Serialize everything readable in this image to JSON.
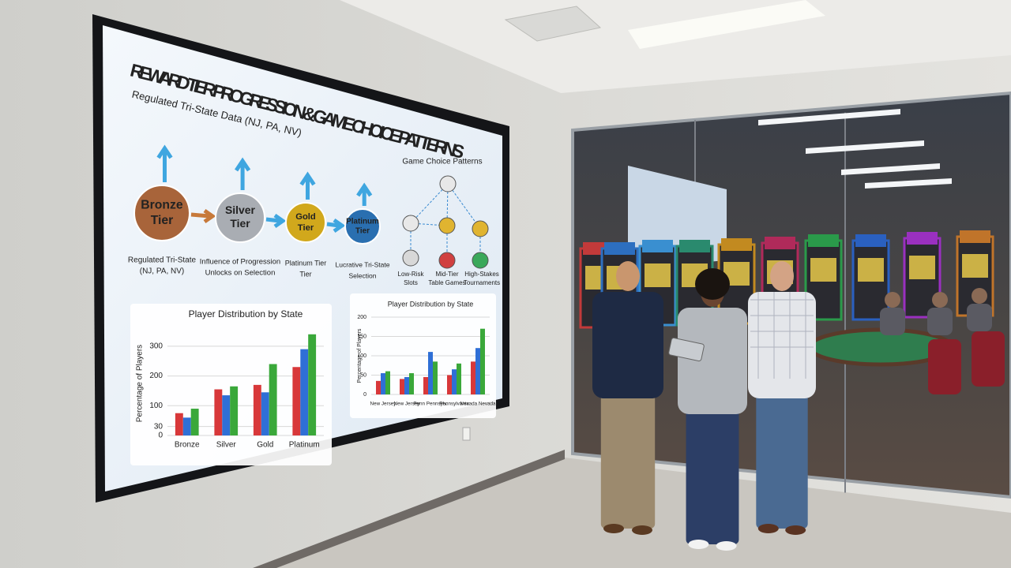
{
  "screen": {
    "title": "REWARD TIER PROGRESSION & GAME CHOICE PATTERNS",
    "subtitle": "Regulated Tri-State Data (NJ, PA, NV)",
    "tiers": [
      {
        "label": [
          "Bronze",
          "Tier"
        ],
        "caption": [
          "Regulated Tri-State",
          "(NJ, PA, NV)"
        ],
        "color": "#a8643a"
      },
      {
        "label": [
          "Silver",
          "Tier"
        ],
        "caption": [
          "Influence of Progression",
          "Unlocks on Selection"
        ],
        "color": "#a9adb3"
      },
      {
        "label": [
          "Gold",
          "Tier"
        ],
        "caption": [
          "Platinum Tier",
          "Tier"
        ],
        "color": "#d1a81c"
      },
      {
        "label": [
          "Platinum",
          "Tier"
        ],
        "caption": [
          "Lucrative Tri-State",
          "Selection"
        ],
        "color": "#2a6fb0"
      }
    ],
    "games": {
      "title": "Game Choice Patterns",
      "items": [
        [
          "Low-Risk",
          "Slots"
        ],
        [
          "Mid-Tier",
          "Table Games"
        ],
        [
          "High-Stakes",
          "Tournaments"
        ]
      ]
    }
  },
  "chart_data": [
    {
      "type": "bar",
      "title": "Player Distribution by State",
      "ylabel": "Percentage of Players",
      "categories": [
        "Bronze",
        "Silver",
        "Gold",
        "Platinum"
      ],
      "series": [
        {
          "color": "#d8383a",
          "values": [
            75,
            155,
            170,
            230
          ]
        },
        {
          "color": "#2f6fd6",
          "values": [
            60,
            135,
            145,
            290
          ]
        },
        {
          "color": "#3aa83a",
          "values": [
            90,
            165,
            240,
            340
          ]
        }
      ],
      "ylim": [
        0,
        350
      ],
      "yticks": [
        0,
        30,
        100,
        200,
        300
      ]
    },
    {
      "type": "bar",
      "title": "Player Distribution by State",
      "ylabel": "Percentage of Players",
      "categories": [
        "New Jersey",
        "New Jersey",
        "Penn Pennsylv.",
        "Pennsylvania",
        "Nevada Nevada"
      ],
      "series": [
        {
          "color": "#d8383a",
          "values": [
            35,
            40,
            45,
            50,
            85
          ]
        },
        {
          "color": "#2f6fd6",
          "values": [
            55,
            45,
            110,
            65,
            120
          ]
        },
        {
          "color": "#3aa83a",
          "values": [
            60,
            55,
            85,
            80,
            170
          ]
        }
      ],
      "ylim": [
        0,
        200
      ],
      "yticks": [
        0,
        50,
        100,
        150,
        200
      ]
    }
  ]
}
